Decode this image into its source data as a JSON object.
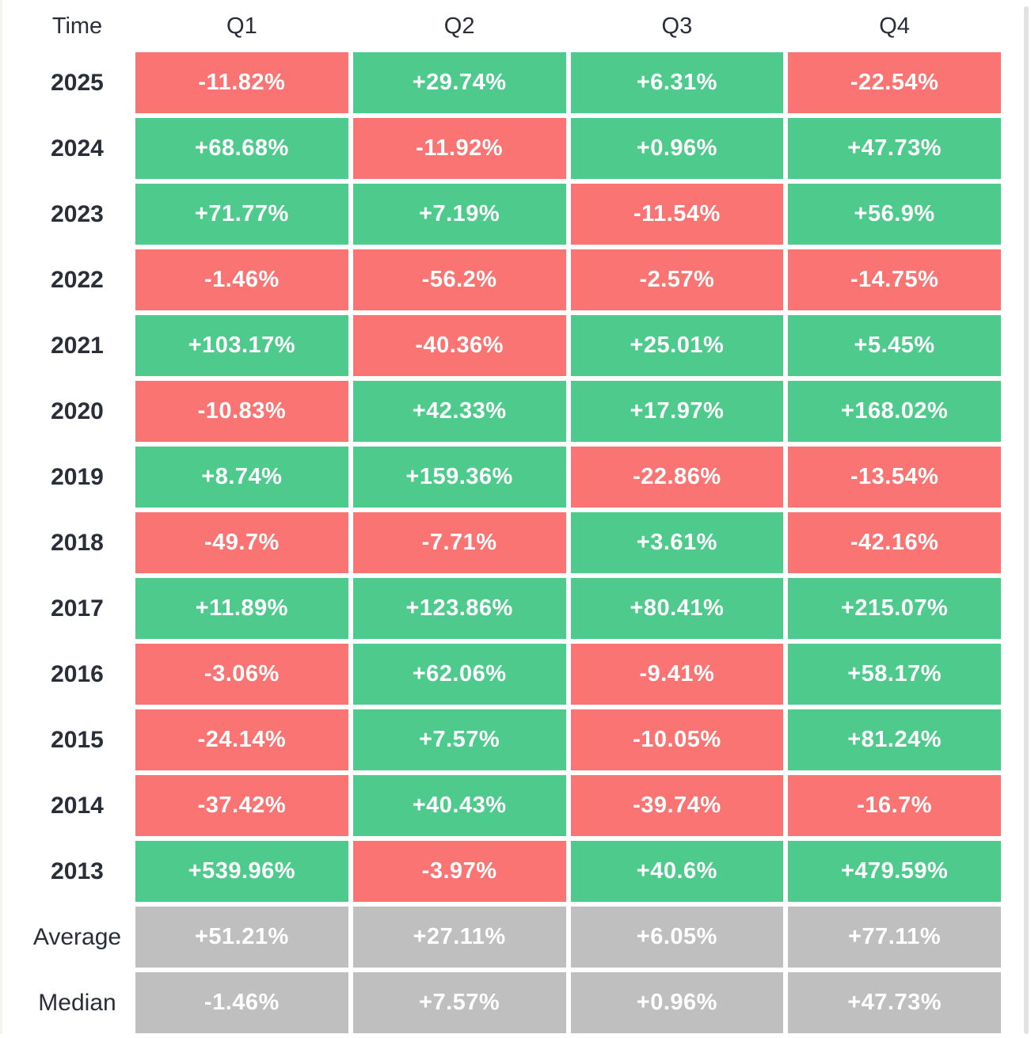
{
  "colors": {
    "positive": "#4ecb8c",
    "negative": "#f97472",
    "neutral": "#bfbfbf",
    "label_text": "#2a2e39",
    "value_text": "#ffffff",
    "scrollbar": "#e2e2e2"
  },
  "table": {
    "columns": [
      "Time",
      "Q1",
      "Q2",
      "Q3",
      "Q4"
    ],
    "rows": [
      {
        "label": "2025",
        "kind": "year",
        "values": [
          "-11.82%",
          "+29.74%",
          "+6.31%",
          "-22.54%"
        ]
      },
      {
        "label": "2024",
        "kind": "year",
        "values": [
          "+68.68%",
          "-11.92%",
          "+0.96%",
          "+47.73%"
        ]
      },
      {
        "label": "2023",
        "kind": "year",
        "values": [
          "+71.77%",
          "+7.19%",
          "-11.54%",
          "+56.9%"
        ]
      },
      {
        "label": "2022",
        "kind": "year",
        "values": [
          "-1.46%",
          "-56.2%",
          "-2.57%",
          "-14.75%"
        ]
      },
      {
        "label": "2021",
        "kind": "year",
        "values": [
          "+103.17%",
          "-40.36%",
          "+25.01%",
          "+5.45%"
        ]
      },
      {
        "label": "2020",
        "kind": "year",
        "values": [
          "-10.83%",
          "+42.33%",
          "+17.97%",
          "+168.02%"
        ]
      },
      {
        "label": "2019",
        "kind": "year",
        "values": [
          "+8.74%",
          "+159.36%",
          "-22.86%",
          "-13.54%"
        ]
      },
      {
        "label": "2018",
        "kind": "year",
        "values": [
          "-49.7%",
          "-7.71%",
          "+3.61%",
          "-42.16%"
        ]
      },
      {
        "label": "2017",
        "kind": "year",
        "values": [
          "+11.89%",
          "+123.86%",
          "+80.41%",
          "+215.07%"
        ]
      },
      {
        "label": "2016",
        "kind": "year",
        "values": [
          "-3.06%",
          "+62.06%",
          "-9.41%",
          "+58.17%"
        ]
      },
      {
        "label": "2015",
        "kind": "year",
        "values": [
          "-24.14%",
          "+7.57%",
          "-10.05%",
          "+81.24%"
        ]
      },
      {
        "label": "2014",
        "kind": "year",
        "values": [
          "-37.42%",
          "+40.43%",
          "-39.74%",
          "-16.7%"
        ]
      },
      {
        "label": "2013",
        "kind": "year",
        "values": [
          "+539.96%",
          "-3.97%",
          "+40.6%",
          "+479.59%"
        ]
      },
      {
        "label": "Average",
        "kind": "summary",
        "values": [
          "+51.21%",
          "+27.11%",
          "+6.05%",
          "+77.11%"
        ]
      },
      {
        "label": "Median",
        "kind": "summary",
        "values": [
          "-1.46%",
          "+7.57%",
          "+0.96%",
          "+47.73%"
        ]
      }
    ]
  },
  "chart_data": {
    "type": "heatmap",
    "title": "",
    "x_labels": [
      "Q1",
      "Q2",
      "Q3",
      "Q4"
    ],
    "y_labels": [
      "2025",
      "2024",
      "2023",
      "2022",
      "2021",
      "2020",
      "2019",
      "2018",
      "2017",
      "2016",
      "2015",
      "2014",
      "2013",
      "Average",
      "Median"
    ],
    "values_pct": [
      [
        -11.82,
        29.74,
        6.31,
        -22.54
      ],
      [
        68.68,
        -11.92,
        0.96,
        47.73
      ],
      [
        71.77,
        7.19,
        -11.54,
        56.9
      ],
      [
        -1.46,
        -56.2,
        -2.57,
        -14.75
      ],
      [
        103.17,
        -40.36,
        25.01,
        5.45
      ],
      [
        -10.83,
        42.33,
        17.97,
        168.02
      ],
      [
        8.74,
        159.36,
        -22.86,
        -13.54
      ],
      [
        -49.7,
        -7.71,
        3.61,
        -42.16
      ],
      [
        11.89,
        123.86,
        80.41,
        215.07
      ],
      [
        -3.06,
        62.06,
        -9.41,
        58.17
      ],
      [
        -24.14,
        7.57,
        -10.05,
        81.24
      ],
      [
        -37.42,
        40.43,
        -39.74,
        -16.7
      ],
      [
        539.96,
        -3.97,
        40.6,
        479.59
      ],
      [
        51.21,
        27.11,
        6.05,
        77.11
      ],
      [
        -1.46,
        7.57,
        0.96,
        47.73
      ]
    ],
    "color_rule": "green when value is positive, red when negative, gray for Average/Median summary rows",
    "legend_position": "none",
    "grid": false
  }
}
